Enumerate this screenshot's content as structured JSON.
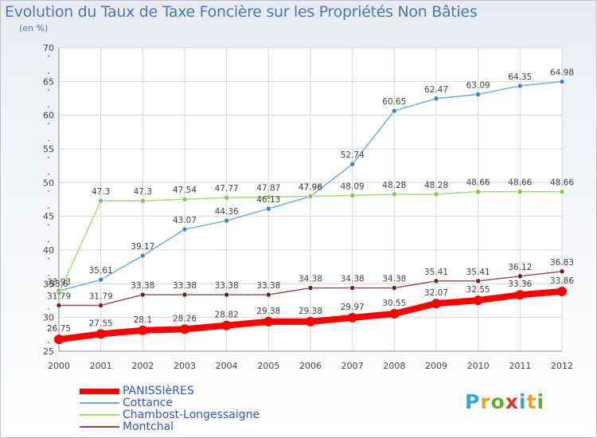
{
  "header": {
    "title": "Evolution du Taux de Taxe Foncière sur les Propriétés Non Bâties",
    "subtitle": "(en %)"
  },
  "logo": {
    "text": "Proxiti"
  },
  "chart_data": {
    "type": "line",
    "title": "Evolution du Taux de Taxe Foncière sur les Propriétés Non Bâties",
    "subtitle": "(en %)",
    "x": [
      2000,
      2001,
      2002,
      2003,
      2004,
      2005,
      2006,
      2007,
      2008,
      2009,
      2010,
      2011,
      2012
    ],
    "ylim": [
      25,
      70
    ],
    "yticks": [
      25,
      30,
      35,
      40,
      45,
      50,
      55,
      60,
      65,
      70
    ],
    "grid": true,
    "legend_position": "bottom-left",
    "series": [
      {
        "name": "PANISSIèRES",
        "color": "#ff0000",
        "marker": "#ff0000",
        "values": [
          26.75,
          27.55,
          28.1,
          28.26,
          28.82,
          29.38,
          29.38,
          29.97,
          30.55,
          32.07,
          32.55,
          33.36,
          33.86
        ],
        "labels": [
          "26.75",
          "27.55",
          "28.1",
          "28.26",
          "28.82",
          "29.38",
          "29.38",
          "29.97",
          "30.55",
          "32.07",
          "32.55",
          "33.36",
          "33.86"
        ]
      },
      {
        "name": "Cottance",
        "color": "#6fa8dc",
        "marker": "#3d85c6",
        "values": [
          33.93,
          35.61,
          39.17,
          43.07,
          44.36,
          46.13,
          47.96,
          52.74,
          60.65,
          62.47,
          63.09,
          64.35,
          64.98
        ],
        "labels": [
          "33.93",
          "35.61",
          "39.17",
          "43.07",
          "44.36",
          "46.13",
          "47.96",
          "52.74",
          "60.65",
          "62.47",
          "63.09",
          "64.35",
          "64.98"
        ]
      },
      {
        "name": "Chambost-Longessaigne",
        "color": "#a6d96a",
        "marker": "#8bc34a",
        "values": [
          33.6,
          47.3,
          47.3,
          47.54,
          47.77,
          47.87,
          47.98,
          48.09,
          48.28,
          48.28,
          48.66,
          48.66,
          48.66
        ],
        "labels": [
          "33.6",
          "47.3",
          "47.3",
          "47.54",
          "47.77",
          "47.87",
          "47.98",
          "48.09",
          "48.28",
          "48.28",
          "48.66",
          "48.66",
          "48.66"
        ]
      },
      {
        "name": "Montchal",
        "color": "#8e4a4a",
        "marker": "#6b1f1f",
        "values": [
          31.79,
          31.79,
          33.38,
          33.38,
          33.38,
          33.38,
          34.38,
          34.38,
          34.38,
          35.41,
          35.41,
          36.12,
          36.83
        ],
        "labels": [
          "31.79",
          "31.79",
          "33.38",
          "33.38",
          "33.38",
          "33.38",
          "34.38",
          "34.38",
          "34.38",
          "35.41",
          "35.41",
          "36.12",
          "36.83"
        ]
      }
    ]
  }
}
